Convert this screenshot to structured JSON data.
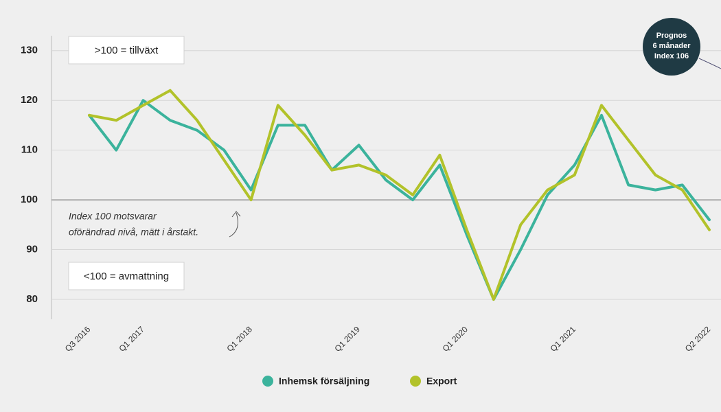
{
  "chart_data": {
    "type": "line",
    "categories": [
      "Q3 2016",
      null,
      "Q1 2017",
      null,
      null,
      null,
      "Q1 2018",
      null,
      null,
      null,
      "Q1 2019",
      null,
      null,
      null,
      "Q1 2020",
      null,
      null,
      null,
      "Q1 2021",
      null,
      null,
      null,
      null,
      "Q2 2022"
    ],
    "series": [
      {
        "name": "Inhemsk försäljning",
        "color": "#3bb39c",
        "values": [
          117,
          110,
          120,
          116,
          114,
          110,
          102,
          115,
          115,
          106,
          111,
          104,
          100,
          107,
          93,
          80,
          90,
          101,
          107,
          117,
          103,
          102,
          103,
          96
        ]
      },
      {
        "name": "Export",
        "color": "#b2c22a",
        "values": [
          117,
          116,
          119,
          122,
          116,
          108,
          100,
          119,
          113,
          106,
          107,
          105,
          101,
          109,
          94,
          80,
          95,
          102,
          105,
          119,
          112,
          105,
          102,
          94
        ]
      }
    ],
    "ylim": [
      76,
      133
    ],
    "yticks": [
      80,
      90,
      100,
      110,
      120,
      130
    ],
    "grid": true,
    "baseline": 100,
    "annotations": {
      "above": ">100 = tillväxt",
      "below": "<100 = avmattning",
      "note": [
        "Index 100 motsvarar",
        "oförändrad nivå, mätt i årstakt."
      ],
      "forecast": [
        "Prognos",
        "6 månader",
        "Index 106"
      ]
    },
    "legend": "bottom"
  }
}
